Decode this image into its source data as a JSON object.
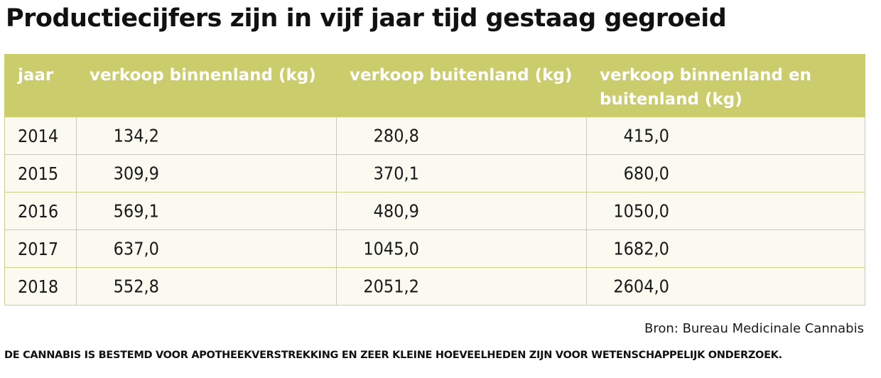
{
  "title": "Productiecijfers zijn in vijf jaar tijd gestaag gegroeid",
  "colors": {
    "header_bg": "#cbcc6c",
    "row_bg": "#fbfaf0",
    "border": "#cdd08a",
    "header_text": "#ffffff"
  },
  "chart_data": {
    "type": "table",
    "title": "Productiecijfers zijn in vijf jaar tijd gestaag gegroeid",
    "columns": [
      "jaar",
      "verkoop binnenland (kg)",
      "verkoop buitenland (kg)",
      "verkoop binnenland en buitenland (kg)"
    ],
    "rows": [
      [
        "2014",
        "134,2",
        "280,8",
        "415,0"
      ],
      [
        "2015",
        "309,9",
        "370,1",
        "680,0"
      ],
      [
        "2016",
        "569,1",
        "480,9",
        "1050,0"
      ],
      [
        "2017",
        "637,0",
        "1045,0",
        "1682,0"
      ],
      [
        "2018",
        "552,8",
        "2051,2",
        "2604,0"
      ]
    ]
  },
  "source": "Bron: Bureau Medicinale Cannabis",
  "footnote": "DE CANNABIS IS BESTEMD VOOR APOTHEEKVERSTREKKING EN ZEER KLEINE HOEVEELHEDEN ZIJN VOOR WETENSCHAPPELIJK ONDERZOEK."
}
